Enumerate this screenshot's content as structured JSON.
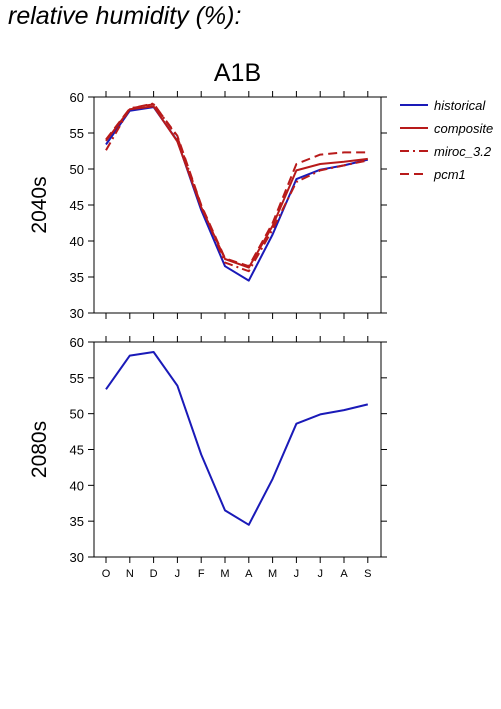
{
  "page": {
    "heading": "relative humidity (%):"
  },
  "chart_data": {
    "type": "line",
    "title": "A1B",
    "months": [
      "O",
      "N",
      "D",
      "J",
      "F",
      "M",
      "A",
      "M",
      "J",
      "J",
      "A",
      "S"
    ],
    "yticks": [
      30,
      35,
      40,
      45,
      50,
      55,
      60
    ],
    "ylim": [
      30,
      60
    ],
    "legend_position": "right",
    "legend": [
      "historical",
      "composite",
      "miroc_3.2",
      "pcm1"
    ],
    "panels": [
      {
        "row_label": "2040s",
        "series": [
          {
            "name": "historical",
            "color": "#1a1ab8",
            "dash": "solid",
            "values": [
              53.4,
              58.1,
              58.6,
              53.9,
              44.3,
              36.5,
              34.5,
              40.9,
              48.6,
              49.9,
              50.5,
              51.3
            ]
          },
          {
            "name": "composite",
            "color": "#b81a1a",
            "dash": "solid",
            "values": [
              53.9,
              58.3,
              58.7,
              53.8,
              44.7,
              37.5,
              36.3,
              42.1,
              49.8,
              50.7,
              51.0,
              51.4
            ]
          },
          {
            "name": "miroc_3.2",
            "color": "#b81a1a",
            "dash": "dashdot",
            "values": [
              52.6,
              58.4,
              59.1,
              54.4,
              44.9,
              37.0,
              35.8,
              41.6,
              48.2,
              49.8,
              50.5,
              51.2
            ]
          },
          {
            "name": "pcm1",
            "color": "#b81a1a",
            "dash": "dashed",
            "values": [
              54.1,
              58.4,
              59.0,
              54.6,
              45.0,
              37.6,
              36.5,
              42.5,
              50.7,
              52.0,
              52.3,
              52.3
            ]
          }
        ]
      },
      {
        "row_label": "2080s",
        "series": [
          {
            "name": "historical",
            "color": "#1a1ab8",
            "dash": "solid",
            "values": [
              53.4,
              58.1,
              58.6,
              53.9,
              44.3,
              36.5,
              34.5,
              40.9,
              48.6,
              49.9,
              50.5,
              51.3
            ]
          }
        ]
      }
    ]
  }
}
